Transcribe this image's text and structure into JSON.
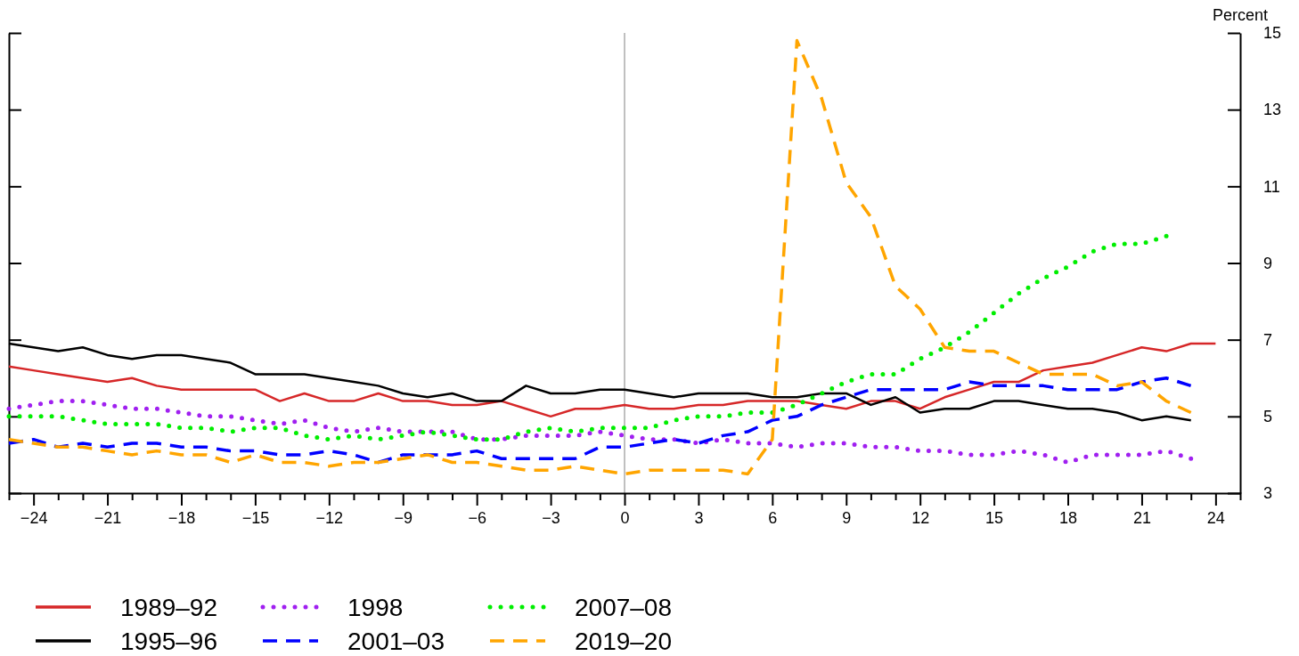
{
  "chart_data": {
    "type": "line",
    "ylabel": "Percent",
    "legend": "bottom",
    "grid": false,
    "tick_labels": "x,y2",
    "xlim": [
      -25,
      25
    ],
    "ylim": [
      3,
      15
    ],
    "xticks": [
      {
        "value": -24,
        "label": "−24"
      },
      {
        "value": -23,
        "label": null
      },
      {
        "value": -22,
        "label": null
      },
      {
        "value": -21,
        "label": "−21"
      },
      {
        "value": -20,
        "label": null
      },
      {
        "value": -19,
        "label": null
      },
      {
        "value": -18,
        "label": "−18"
      },
      {
        "value": -17,
        "label": null
      },
      {
        "value": -16,
        "label": null
      },
      {
        "value": -15,
        "label": "−15"
      },
      {
        "value": -14,
        "label": null
      },
      {
        "value": -13,
        "label": null
      },
      {
        "value": -12,
        "label": "−12"
      },
      {
        "value": -11,
        "label": null
      },
      {
        "value": -10,
        "label": null
      },
      {
        "value": -9,
        "label": "−9"
      },
      {
        "value": -8,
        "label": null
      },
      {
        "value": -7,
        "label": null
      },
      {
        "value": -6,
        "label": "−6"
      },
      {
        "value": -5,
        "label": null
      },
      {
        "value": -4,
        "label": null
      },
      {
        "value": -3,
        "label": "−3"
      },
      {
        "value": -2,
        "label": null
      },
      {
        "value": -1,
        "label": null
      },
      0,
      {
        "value": 1,
        "label": null
      },
      {
        "value": 2,
        "label": null
      },
      3,
      {
        "value": 4,
        "label": null
      },
      {
        "value": 5,
        "label": null
      },
      6,
      {
        "value": 7,
        "label": null
      },
      {
        "value": 8,
        "label": null
      },
      9,
      {
        "value": 10,
        "label": null
      },
      {
        "value": 11,
        "label": null
      },
      12,
      {
        "value": 13,
        "label": null
      },
      {
        "value": 14,
        "label": null
      },
      15,
      {
        "value": 16,
        "label": null
      },
      {
        "value": 17,
        "label": null
      },
      18,
      {
        "value": 19,
        "label": null
      },
      {
        "value": 20,
        "label": null
      },
      21,
      {
        "value": 22,
        "label": null
      },
      {
        "value": 23,
        "label": null
      },
      24
    ],
    "yticks": [
      3,
      5,
      7,
      9,
      11,
      13,
      15
    ],
    "ref_lines": [
      {
        "axis": "x",
        "value": 0,
        "color": "#c0c0c0"
      }
    ],
    "series": [
      {
        "name": "1989–92",
        "color": "#d62728",
        "line_style": "solid",
        "x": [
          -25,
          -24,
          -23,
          -22,
          -21,
          -20,
          -19,
          -18,
          -17,
          -16,
          -15,
          -14,
          -13,
          -12,
          -11,
          -10,
          -9,
          -8,
          -7,
          -6,
          -5,
          -4,
          -3,
          -2,
          -1,
          0,
          1,
          2,
          3,
          4,
          5,
          6,
          7,
          8,
          9,
          10,
          11,
          12,
          13,
          14,
          15,
          16,
          17,
          18,
          19,
          20,
          21,
          22,
          23,
          24
        ],
        "values": [
          6.3,
          6.2,
          6.1,
          6.0,
          5.9,
          6.0,
          5.8,
          5.7,
          5.7,
          5.7,
          5.7,
          5.4,
          5.6,
          5.4,
          5.4,
          5.6,
          5.4,
          5.4,
          5.3,
          5.3,
          5.4,
          5.2,
          5.0,
          5.2,
          5.2,
          5.3,
          5.2,
          5.2,
          5.3,
          5.3,
          5.4,
          5.4,
          5.4,
          5.3,
          5.2,
          5.4,
          5.4,
          5.2,
          5.5,
          5.7,
          5.9,
          5.9,
          6.2,
          6.3,
          6.4,
          6.6,
          6.8,
          6.7,
          6.9,
          6.9
        ]
      },
      {
        "name": "1995–96",
        "color": "#000000",
        "line_style": "solid",
        "x": [
          -25,
          -24,
          -23,
          -22,
          -21,
          -20,
          -19,
          -18,
          -17,
          -16,
          -15,
          -14,
          -13,
          -12,
          -11,
          -10,
          -9,
          -8,
          -7,
          -6,
          -5,
          -4,
          -3,
          -2,
          -1,
          0,
          1,
          2,
          3,
          4,
          5,
          6,
          7,
          8,
          9,
          10,
          11,
          12,
          13,
          14,
          15,
          16,
          17,
          18,
          19,
          20,
          21,
          22,
          23
        ],
        "values": [
          6.9,
          6.8,
          6.7,
          6.8,
          6.6,
          6.5,
          6.6,
          6.6,
          6.5,
          6.4,
          6.1,
          6.1,
          6.1,
          6.0,
          5.9,
          5.8,
          5.6,
          5.5,
          5.6,
          5.4,
          5.4,
          5.8,
          5.6,
          5.6,
          5.7,
          5.7,
          5.6,
          5.5,
          5.6,
          5.6,
          5.6,
          5.5,
          5.5,
          5.6,
          5.6,
          5.3,
          5.5,
          5.1,
          5.2,
          5.2,
          5.4,
          5.4,
          5.3,
          5.2,
          5.2,
          5.1,
          4.9,
          5.0,
          4.9
        ]
      },
      {
        "name": "1998",
        "color": "#a020f0",
        "line_style": "dotted",
        "x": [
          -25,
          -24,
          -23,
          -22,
          -21,
          -20,
          -19,
          -18,
          -17,
          -16,
          -15,
          -14,
          -13,
          -12,
          -11,
          -10,
          -9,
          -8,
          -7,
          -6,
          -5,
          -4,
          -3,
          -2,
          -1,
          0,
          1,
          2,
          3,
          4,
          5,
          6,
          7,
          8,
          9,
          10,
          11,
          12,
          13,
          14,
          15,
          16,
          17,
          18,
          19,
          20,
          21,
          22,
          23
        ],
        "values": [
          5.2,
          5.3,
          5.4,
          5.4,
          5.3,
          5.2,
          5.2,
          5.1,
          5.0,
          5.0,
          4.9,
          4.8,
          4.9,
          4.7,
          4.6,
          4.7,
          4.6,
          4.6,
          4.6,
          4.4,
          4.4,
          4.5,
          4.5,
          4.5,
          4.6,
          4.5,
          4.4,
          4.4,
          4.3,
          4.4,
          4.3,
          4.3,
          4.2,
          4.3,
          4.3,
          4.2,
          4.2,
          4.1,
          4.1,
          4.0,
          4.0,
          4.1,
          4.0,
          3.8,
          4.0,
          4.0,
          4.0,
          4.1,
          3.9
        ]
      },
      {
        "name": "2001–03",
        "color": "#0000ff",
        "line_style": "dashed",
        "x": [
          -25,
          -24,
          -23,
          -22,
          -21,
          -20,
          -19,
          -18,
          -17,
          -16,
          -15,
          -14,
          -13,
          -12,
          -11,
          -10,
          -9,
          -8,
          -7,
          -6,
          -5,
          -4,
          -3,
          -2,
          -1,
          0,
          1,
          2,
          3,
          4,
          5,
          6,
          7,
          8,
          9,
          10,
          11,
          12,
          13,
          14,
          15,
          16,
          17,
          18,
          19,
          20,
          21,
          22,
          23
        ],
        "values": [
          4.3,
          4.4,
          4.2,
          4.3,
          4.2,
          4.3,
          4.3,
          4.2,
          4.2,
          4.1,
          4.1,
          4.0,
          4.0,
          4.1,
          4.0,
          3.8,
          4.0,
          4.0,
          4.0,
          4.1,
          3.9,
          3.9,
          3.9,
          3.9,
          4.2,
          4.2,
          4.3,
          4.4,
          4.3,
          4.5,
          4.6,
          4.9,
          5.0,
          5.3,
          5.5,
          5.7,
          5.7,
          5.7,
          5.7,
          5.9,
          5.8,
          5.8,
          5.8,
          5.7,
          5.7,
          5.7,
          5.9,
          6.0,
          5.8
        ]
      },
      {
        "name": "2007–08",
        "color": "#00ee00",
        "line_style": "dotted",
        "x": [
          -25,
          -24,
          -23,
          -22,
          -21,
          -20,
          -19,
          -18,
          -17,
          -16,
          -15,
          -14,
          -13,
          -12,
          -11,
          -10,
          -9,
          -8,
          -7,
          -6,
          -5,
          -4,
          -3,
          -2,
          -1,
          0,
          1,
          2,
          3,
          4,
          5,
          6,
          7,
          8,
          9,
          10,
          11,
          12,
          13,
          14,
          15,
          16,
          17,
          18,
          19,
          20,
          21,
          22
        ],
        "values": [
          5.0,
          5.0,
          5.0,
          4.9,
          4.8,
          4.8,
          4.8,
          4.7,
          4.7,
          4.6,
          4.7,
          4.7,
          4.5,
          4.4,
          4.5,
          4.4,
          4.5,
          4.6,
          4.5,
          4.4,
          4.4,
          4.6,
          4.7,
          4.6,
          4.7,
          4.7,
          4.7,
          4.9,
          5.0,
          5.0,
          5.1,
          5.1,
          5.3,
          5.6,
          5.9,
          6.1,
          6.1,
          6.5,
          6.8,
          7.2,
          7.7,
          8.2,
          8.6,
          8.9,
          9.3,
          9.5,
          9.5,
          9.7
        ]
      },
      {
        "name": "2019–20",
        "color": "#ffa500",
        "line_style": "dashed",
        "x": [
          -25,
          -24,
          -23,
          -22,
          -21,
          -20,
          -19,
          -18,
          -17,
          -16,
          -15,
          -14,
          -13,
          -12,
          -11,
          -10,
          -9,
          -8,
          -7,
          -6,
          -5,
          -4,
          -3,
          -2,
          -1,
          0,
          1,
          2,
          3,
          4,
          5,
          6,
          7,
          8,
          9,
          10,
          11,
          12,
          13,
          14,
          15,
          16,
          17,
          18,
          19,
          20,
          21,
          22,
          23
        ],
        "values": [
          4.4,
          4.3,
          4.2,
          4.2,
          4.1,
          4.0,
          4.1,
          4.0,
          4.0,
          3.8,
          4.0,
          3.8,
          3.8,
          3.7,
          3.8,
          3.8,
          3.9,
          4.0,
          3.8,
          3.8,
          3.7,
          3.6,
          3.6,
          3.7,
          3.6,
          3.5,
          3.6,
          3.6,
          3.6,
          3.6,
          3.5,
          4.4,
          14.8,
          13.3,
          11.1,
          10.2,
          8.4,
          7.8,
          6.8,
          6.7,
          6.7,
          6.4,
          6.1,
          6.1,
          6.1,
          5.8,
          5.9,
          5.4,
          5.1
        ]
      }
    ]
  }
}
